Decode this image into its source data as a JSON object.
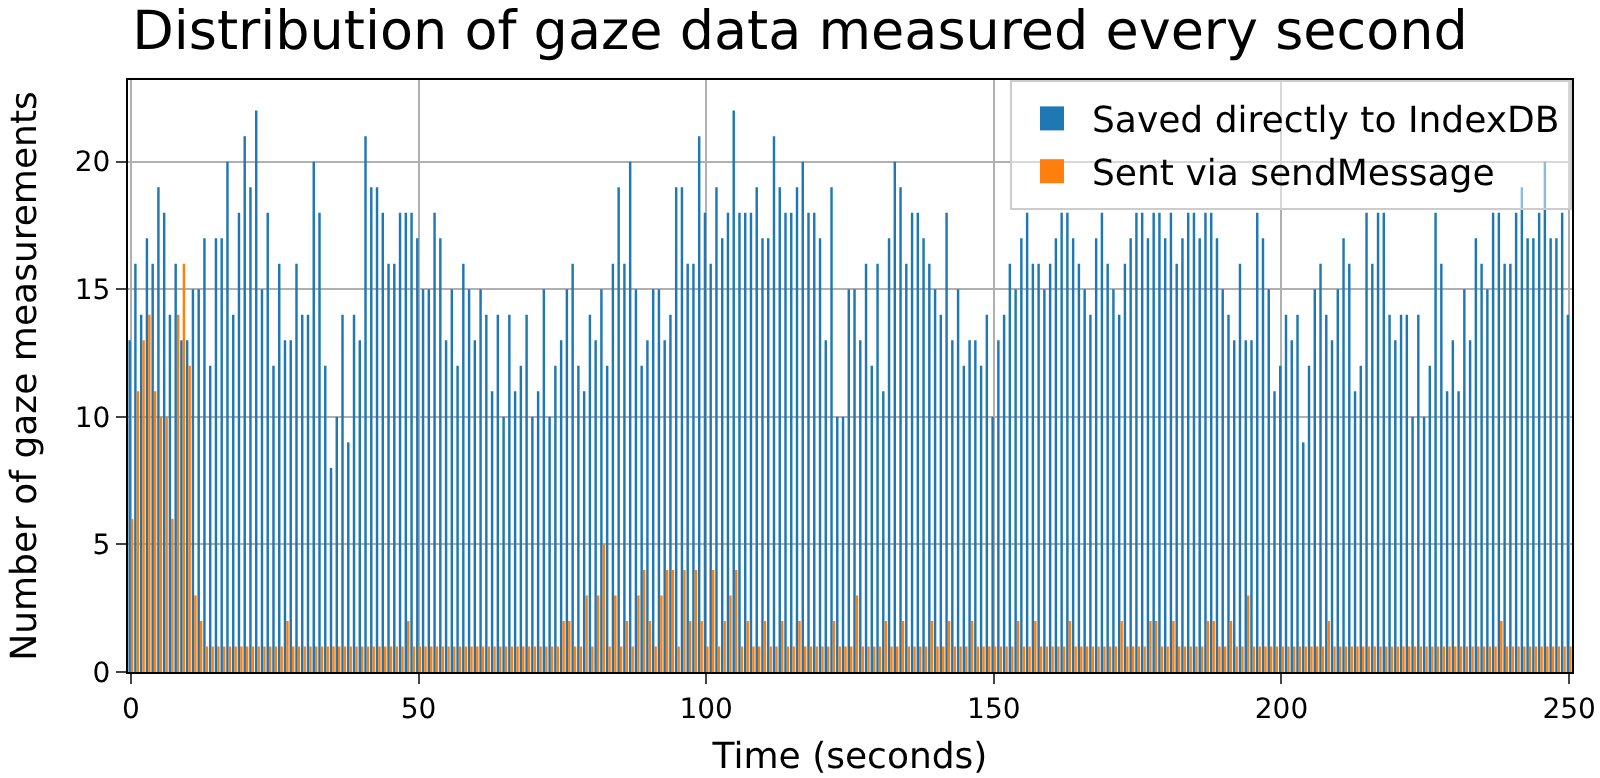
{
  "chart_data": {
    "type": "bar",
    "title": "Distribution of gaze data measured every second",
    "xlabel": "Time (seconds)",
    "ylabel": "Number of gaze measurements",
    "x": [
      0,
      1,
      2,
      3,
      4,
      5,
      6,
      7,
      8,
      9,
      10,
      11,
      12,
      13,
      14,
      15,
      16,
      17,
      18,
      19,
      20,
      21,
      22,
      23,
      24,
      25,
      26,
      27,
      28,
      29,
      30,
      31,
      32,
      33,
      34,
      35,
      36,
      37,
      38,
      39,
      40,
      41,
      42,
      43,
      44,
      45,
      46,
      47,
      48,
      49,
      50,
      51,
      52,
      53,
      54,
      55,
      56,
      57,
      58,
      59,
      60,
      61,
      62,
      63,
      64,
      65,
      66,
      67,
      68,
      69,
      70,
      71,
      72,
      73,
      74,
      75,
      76,
      77,
      78,
      79,
      80,
      81,
      82,
      83,
      84,
      85,
      86,
      87,
      88,
      89,
      90,
      91,
      92,
      93,
      94,
      95,
      96,
      97,
      98,
      99,
      100,
      101,
      102,
      103,
      104,
      105,
      106,
      107,
      108,
      109,
      110,
      111,
      112,
      113,
      114,
      115,
      116,
      117,
      118,
      119,
      120,
      121,
      122,
      123,
      124,
      125,
      126,
      127,
      128,
      129,
      130,
      131,
      132,
      133,
      134,
      135,
      136,
      137,
      138,
      139,
      140,
      141,
      142,
      143,
      144,
      145,
      146,
      147,
      148,
      149,
      150,
      151,
      152,
      153,
      154,
      155,
      156,
      157,
      158,
      159,
      160,
      161,
      162,
      163,
      164,
      165,
      166,
      167,
      168,
      169,
      170,
      171,
      172,
      173,
      174,
      175,
      176,
      177,
      178,
      179,
      180,
      181,
      182,
      183,
      184,
      185,
      186,
      187,
      188,
      189,
      190,
      191,
      192,
      193,
      194,
      195,
      196,
      197,
      198,
      199,
      200,
      201,
      202,
      203,
      204,
      205,
      206,
      207,
      208,
      209,
      210,
      211,
      212,
      213,
      214,
      215,
      216,
      217,
      218,
      219,
      220,
      221,
      222,
      223,
      224,
      225,
      226,
      227,
      228,
      229,
      230,
      231,
      232,
      233,
      234,
      235,
      236,
      237,
      238,
      239,
      240,
      241,
      242,
      243,
      244,
      245,
      246,
      247,
      248,
      249,
      250
    ],
    "series": [
      {
        "name": "Saved directly to IndexDB",
        "color": "#1f77b4",
        "values": [
          13,
          16,
          14,
          17,
          16,
          19,
          18,
          14,
          16,
          13,
          13,
          15,
          15,
          17,
          12,
          17,
          17,
          20,
          14,
          18,
          21,
          19,
          22,
          15,
          18,
          12,
          16,
          13,
          13,
          16,
          14,
          14,
          20,
          18,
          12,
          8,
          10,
          14,
          9,
          14,
          13,
          21,
          19,
          19,
          18,
          16,
          16,
          18,
          18,
          18,
          17,
          15,
          15,
          18,
          17,
          13,
          15,
          12,
          16,
          15,
          13,
          15,
          14,
          11,
          14,
          10,
          14,
          11,
          12,
          14,
          10,
          11,
          15,
          10,
          12,
          13,
          15,
          16,
          12,
          11,
          14,
          13,
          15,
          12,
          16,
          19,
          16,
          20,
          15,
          12,
          13,
          15,
          15,
          13,
          14,
          19,
          19,
          16,
          16,
          21,
          18,
          16,
          19,
          17,
          18,
          22,
          18,
          18,
          18,
          19,
          17,
          17,
          21,
          19,
          18,
          18,
          19,
          20,
          18,
          18,
          17,
          13,
          19,
          10,
          10,
          15,
          15,
          13,
          16,
          12,
          16,
          11,
          17,
          20,
          19,
          16,
          18,
          18,
          17,
          16,
          15,
          14,
          18,
          13,
          15,
          12,
          13,
          13,
          12,
          14,
          10,
          13,
          14,
          16,
          15,
          17,
          18,
          16,
          16,
          15,
          16,
          17,
          18,
          18,
          17,
          16,
          15,
          14,
          17,
          18,
          16,
          15,
          14,
          16,
          17,
          18,
          18,
          17,
          18,
          18,
          17,
          18,
          16,
          17,
          18,
          18,
          17,
          18,
          18,
          17,
          15,
          14,
          13,
          16,
          13,
          13,
          18,
          17,
          15,
          11,
          12,
          14,
          13,
          14,
          9,
          12,
          15,
          16,
          14,
          13,
          15,
          17,
          16,
          11,
          12,
          18,
          16,
          18,
          18,
          14,
          13,
          14,
          14,
          10,
          14,
          10,
          12,
          18,
          16,
          11,
          13,
          11,
          15,
          13,
          17,
          16,
          15,
          18,
          18,
          16,
          16,
          18,
          19,
          17,
          17,
          18,
          20,
          17,
          17,
          18,
          14
        ]
      },
      {
        "name": "Sent via sendMessage",
        "color": "#ff7f0e",
        "values": [
          6,
          11,
          13,
          14,
          11,
          10,
          10,
          6,
          14,
          16,
          12,
          3,
          2,
          1,
          1,
          1,
          1,
          1,
          1,
          1,
          1,
          1,
          1,
          1,
          1,
          1,
          1,
          2,
          1,
          1,
          1,
          1,
          1,
          1,
          1,
          1,
          1,
          1,
          1,
          1,
          1,
          1,
          1,
          1,
          1,
          1,
          1,
          1,
          2,
          1,
          1,
          1,
          1,
          1,
          1,
          1,
          1,
          1,
          1,
          1,
          1,
          1,
          1,
          1,
          1,
          1,
          1,
          1,
          1,
          1,
          1,
          1,
          1,
          1,
          1,
          2,
          2,
          1,
          1,
          3,
          1,
          3,
          5,
          1,
          3,
          1,
          2,
          1,
          3,
          4,
          2,
          1,
          3,
          4,
          4,
          1,
          4,
          2,
          4,
          2,
          1,
          4,
          1,
          2,
          3,
          4,
          1,
          2,
          1,
          1,
          2,
          1,
          1,
          2,
          1,
          1,
          2,
          1,
          1,
          1,
          1,
          1,
          2,
          1,
          1,
          1,
          3,
          1,
          1,
          1,
          1,
          2,
          1,
          1,
          2,
          1,
          1,
          1,
          1,
          2,
          1,
          1,
          2,
          1,
          1,
          1,
          2,
          1,
          1,
          1,
          1,
          1,
          1,
          1,
          2,
          1,
          1,
          2,
          1,
          1,
          1,
          1,
          1,
          2,
          1,
          1,
          1,
          1,
          1,
          1,
          1,
          1,
          2,
          1,
          1,
          1,
          1,
          2,
          2,
          1,
          1,
          2,
          1,
          1,
          1,
          1,
          1,
          2,
          2,
          1,
          1,
          2,
          1,
          1,
          3,
          1,
          1,
          1,
          1,
          1,
          1,
          1,
          1,
          1,
          1,
          1,
          1,
          1,
          2,
          1,
          1,
          1,
          1,
          1,
          1,
          1,
          1,
          1,
          1,
          1,
          1,
          1,
          1,
          1,
          1,
          1,
          1,
          1,
          1,
          1,
          1,
          1,
          1,
          1,
          1,
          1,
          1,
          1,
          2,
          1,
          1,
          1,
          1,
          1,
          1,
          1,
          1,
          1,
          1,
          1,
          1
        ]
      }
    ],
    "xlim": [
      -0.5,
      250.5
    ],
    "xticks": [
      0,
      50,
      100,
      150,
      200,
      250
    ],
    "ylim": [
      0,
      23.2
    ],
    "yticks": [
      0,
      5,
      10,
      15,
      20
    ],
    "grid": true,
    "legend": "top right"
  }
}
